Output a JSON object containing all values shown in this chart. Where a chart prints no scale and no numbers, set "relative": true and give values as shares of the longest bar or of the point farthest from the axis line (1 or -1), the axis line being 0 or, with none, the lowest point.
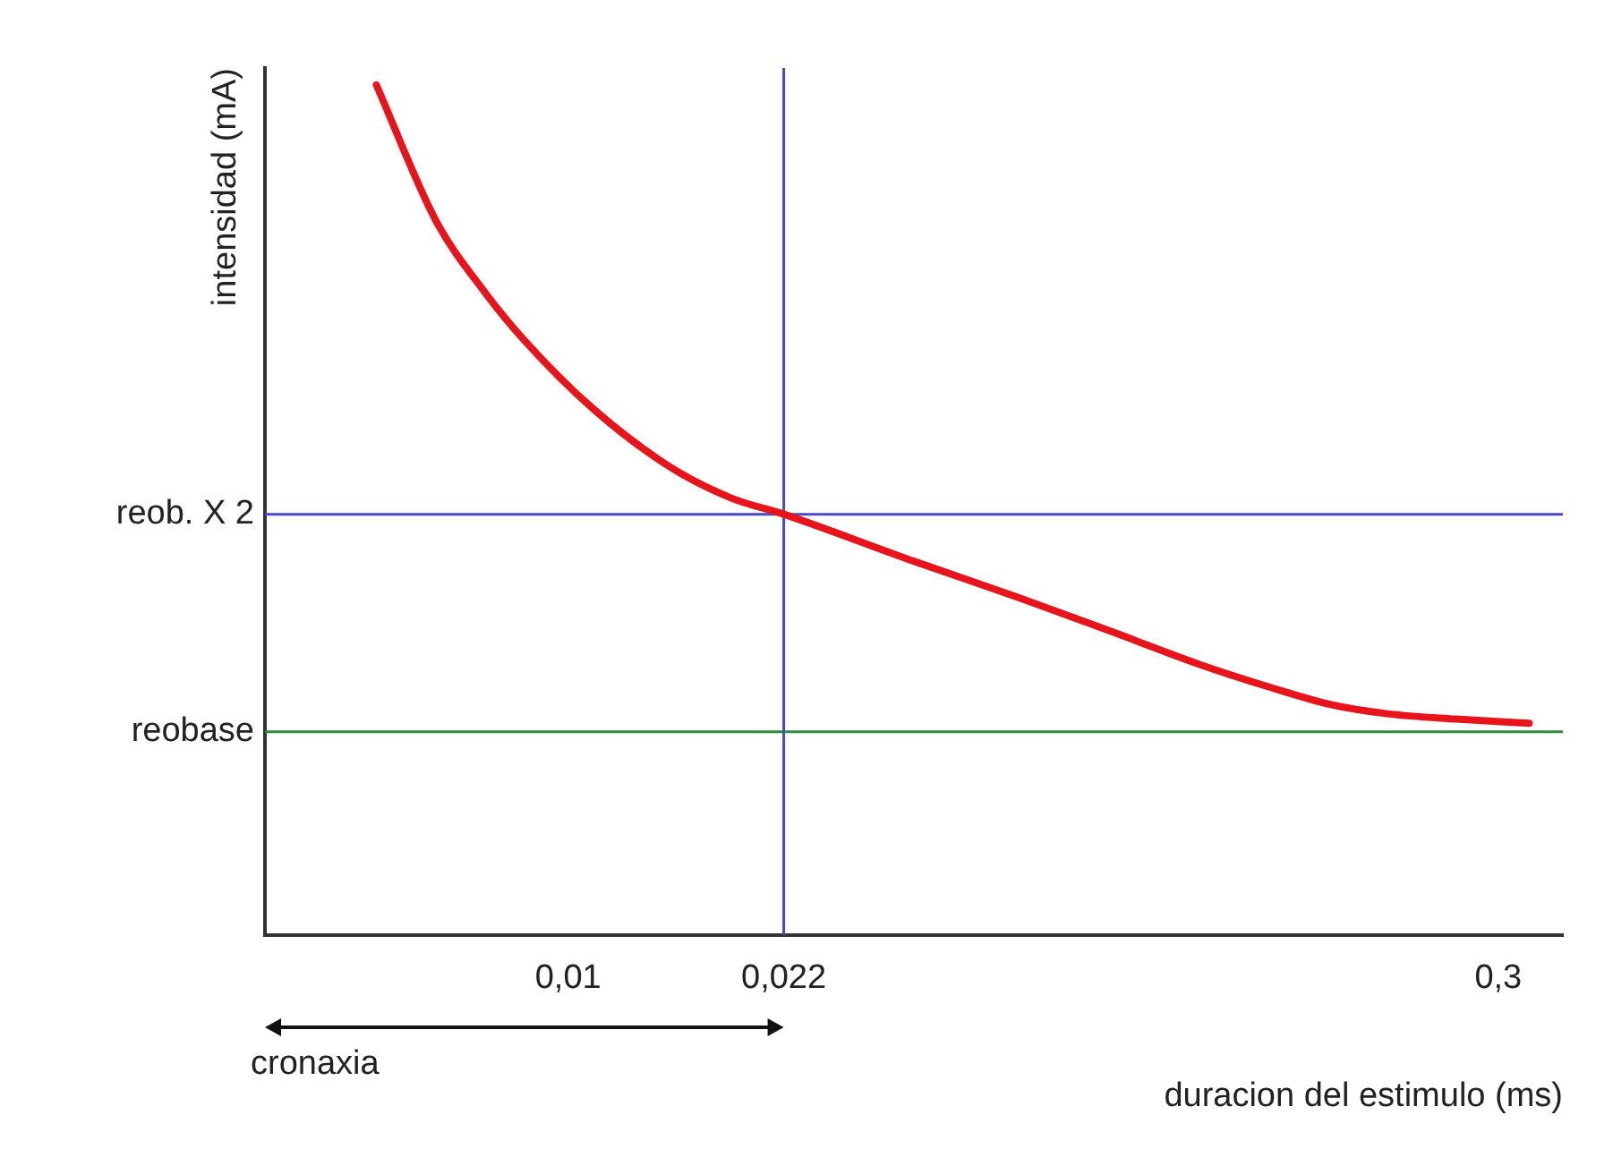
{
  "chart_data": {
    "type": "line",
    "xlabel": "duracion del estimulo (ms)",
    "ylabel": "intensidad (mA)",
    "relative": true,
    "log": "x",
    "grid": false,
    "legend": false,
    "marker": "none",
    "line_style": "solid",
    "x": [
      0.00496,
      0.00616,
      0.00736,
      0.00856,
      0.01096,
      0.01456,
      0.01816,
      0.022,
      0.0353,
      0.0519,
      0.0741,
      0.1018,
      0.1295,
      0.1627,
      0.2015,
      0.2569,
      0.336
    ],
    "series": [
      {
        "color": "#e8141c",
        "values": [
          1,
          0.841,
          0.757,
          0.698,
          0.619,
          0.55,
          0.514,
          0.495,
          0.44,
          0.397,
          0.355,
          0.317,
          0.292,
          0.271,
          0.26,
          0.254,
          0.249
        ]
      }
    ],
    "xlim": [
      0.0033,
      0.38
    ],
    "xticks": [
      {
        "value": 0.01,
        "label": "0,01"
      },
      {
        "value": 0.022,
        "label": "0,022"
      },
      {
        "value": 0.3,
        "label": "0,3"
      }
    ],
    "ref_lines": [
      {
        "axis": "y",
        "value": 0.495,
        "label": "reob. X 2",
        "color": "#4a4ac8"
      },
      {
        "axis": "y",
        "value": 0.239,
        "label": "reobase",
        "color": "#2e8b3a"
      },
      {
        "axis": "x",
        "value": 0.022,
        "color": "#4a4ac8"
      }
    ],
    "annotations": [
      "cronaxia"
    ]
  }
}
